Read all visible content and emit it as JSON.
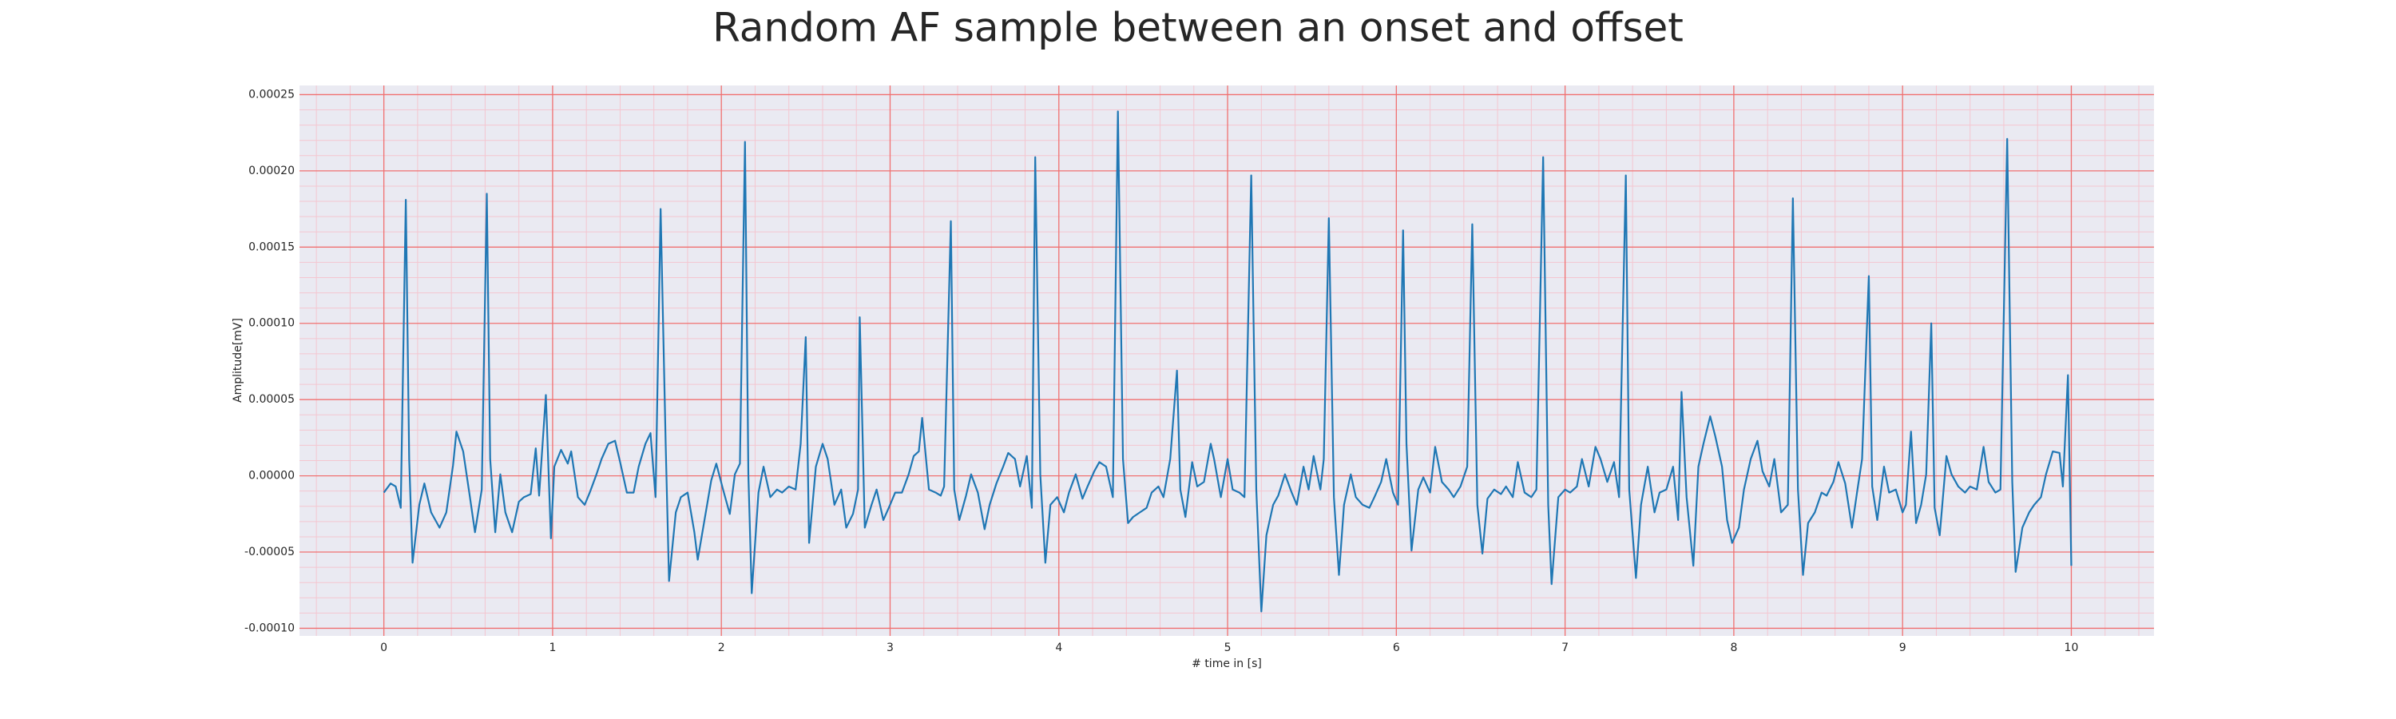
{
  "chart_data": {
    "type": "line",
    "title": "Random AF sample between an onset and offset",
    "xlabel": "# time in [s]",
    "ylabel": "Amplitude[mV]",
    "facecolor": "#eaeaf2",
    "grid": true,
    "grid_color": "#f07070",
    "minor_grid": true,
    "minor_grid_color": "#f4c6d0",
    "minor_divisions": 5,
    "color": "#1f77b4",
    "xlim": [
      -0.5,
      10.49
    ],
    "ylim": [
      -0.000105,
      0.000256
    ],
    "xticks": [
      0,
      1,
      2,
      3,
      4,
      5,
      6,
      7,
      8,
      9,
      10
    ],
    "yticks": [
      {
        "value": -0.0001,
        "label": "-0.00010"
      },
      {
        "value": -5e-05,
        "label": "-0.00005"
      },
      {
        "value": 0,
        "label": "0.00000"
      },
      {
        "value": 5e-05,
        "label": "0.00005"
      },
      {
        "value": 0.0001,
        "label": "0.00010"
      },
      {
        "value": 0.00015,
        "label": "0.00015"
      },
      {
        "value": 0.0002,
        "label": "0.00020"
      },
      {
        "value": 0.00025,
        "label": "0.00025"
      }
    ],
    "x": [
      0,
      0.04,
      0.07,
      0.1,
      0.13,
      0.15,
      0.17,
      0.21,
      0.24,
      0.28,
      0.33,
      0.37,
      0.41,
      0.43,
      0.47,
      0.51,
      0.54,
      0.58,
      0.61,
      0.63,
      0.66,
      0.69,
      0.72,
      0.76,
      0.8,
      0.83,
      0.87,
      0.9,
      0.92,
      0.96,
      0.99,
      1.01,
      1.05,
      1.09,
      1.11,
      1.15,
      1.19,
      1.22,
      1.26,
      1.29,
      1.33,
      1.37,
      1.4,
      1.44,
      1.48,
      1.51,
      1.55,
      1.58,
      1.61,
      1.64,
      1.67,
      1.69,
      1.73,
      1.76,
      1.8,
      1.84,
      1.86,
      1.9,
      1.94,
      1.97,
      2.01,
      2.05,
      2.08,
      2.11,
      2.14,
      2.16,
      2.18,
      2.22,
      2.25,
      2.29,
      2.33,
      2.36,
      2.4,
      2.44,
      2.47,
      2.5,
      2.52,
      2.56,
      2.6,
      2.63,
      2.67,
      2.71,
      2.74,
      2.78,
      2.81,
      2.82,
      2.85,
      2.89,
      2.92,
      2.96,
      3.0,
      3.03,
      3.07,
      3.11,
      3.14,
      3.17,
      3.19,
      3.23,
      3.27,
      3.3,
      3.32,
      3.36,
      3.38,
      3.41,
      3.45,
      3.48,
      3.52,
      3.56,
      3.59,
      3.63,
      3.67,
      3.7,
      3.74,
      3.77,
      3.81,
      3.84,
      3.86,
      3.89,
      3.92,
      3.95,
      3.99,
      4.03,
      4.06,
      4.1,
      4.14,
      4.17,
      4.21,
      4.24,
      4.28,
      4.32,
      4.35,
      4.38,
      4.41,
      4.44,
      4.48,
      4.52,
      4.55,
      4.59,
      4.62,
      4.66,
      4.7,
      4.72,
      4.75,
      4.79,
      4.82,
      4.86,
      4.9,
      4.92,
      4.96,
      5.0,
      5.03,
      5.07,
      5.1,
      5.14,
      5.17,
      5.2,
      5.23,
      5.27,
      5.3,
      5.34,
      5.38,
      5.41,
      5.45,
      5.48,
      5.51,
      5.55,
      5.57,
      5.6,
      5.63,
      5.66,
      5.69,
      5.73,
      5.76,
      5.8,
      5.84,
      5.87,
      5.91,
      5.94,
      5.98,
      6.01,
      6.04,
      6.06,
      6.09,
      6.13,
      6.16,
      6.2,
      6.23,
      6.27,
      6.31,
      6.34,
      6.38,
      6.42,
      6.45,
      6.48,
      6.51,
      6.54,
      6.58,
      6.62,
      6.65,
      6.69,
      6.72,
      6.76,
      6.8,
      6.83,
      6.87,
      6.9,
      6.92,
      6.96,
      7.0,
      7.03,
      7.07,
      7.1,
      7.14,
      7.18,
      7.21,
      7.25,
      7.29,
      7.32,
      7.36,
      7.38,
      7.42,
      7.45,
      7.49,
      7.53,
      7.56,
      7.6,
      7.64,
      7.67,
      7.69,
      7.72,
      7.76,
      7.79,
      7.82,
      7.86,
      7.89,
      7.93,
      7.96,
      7.99,
      8.03,
      8.06,
      8.1,
      8.14,
      8.17,
      8.21,
      8.24,
      8.28,
      8.32,
      8.35,
      8.38,
      8.41,
      8.44,
      8.48,
      8.52,
      8.55,
      8.59,
      8.62,
      8.66,
      8.7,
      8.73,
      8.76,
      8.8,
      8.82,
      8.85,
      8.89,
      8.92,
      8.96,
      9.0,
      9.02,
      9.05,
      9.08,
      9.11,
      9.14,
      9.17,
      9.19,
      9.22,
      9.26,
      9.29,
      9.33,
      9.37,
      9.4,
      9.44,
      9.48,
      9.51,
      9.55,
      9.58,
      9.62,
      9.65,
      9.67,
      9.71,
      9.75,
      9.78,
      9.82,
      9.85,
      9.89,
      9.93,
      9.95,
      9.98,
      10.0
    ],
    "values": [
      -1.1e-05,
      -5e-06,
      -7e-06,
      -2.1e-05,
      0.000181,
      1.1e-05,
      -5.7e-05,
      -1.9e-05,
      -5e-06,
      -2.4e-05,
      -3.4e-05,
      -2.4e-05,
      7e-06,
      2.9e-05,
      1.6e-05,
      -1.4e-05,
      -3.7e-05,
      -9e-06,
      0.000185,
      1.1e-05,
      -3.7e-05,
      1e-06,
      -2.4e-05,
      -3.7e-05,
      -1.7e-05,
      -1.4e-05,
      -1.2e-05,
      1.8e-05,
      -1.3e-05,
      5.3e-05,
      -4.1e-05,
      6e-06,
      1.7e-05,
      8e-06,
      1.6e-05,
      -1.4e-05,
      -1.9e-05,
      -1.1e-05,
      1e-06,
      1.1e-05,
      2.1e-05,
      2.3e-05,
      9e-06,
      -1.1e-05,
      -1.1e-05,
      6e-06,
      2.1e-05,
      2.8e-05,
      -1.4e-05,
      0.000175,
      2.1e-05,
      -6.9e-05,
      -2.4e-05,
      -1.4e-05,
      -1.1e-05,
      -3.7e-05,
      -5.5e-05,
      -2.9e-05,
      -3e-06,
      8e-06,
      -9e-06,
      -2.5e-05,
      1e-06,
      8e-06,
      0.000219,
      1e-06,
      -7.7e-05,
      -1.1e-05,
      6e-06,
      -1.4e-05,
      -9e-06,
      -1.1e-05,
      -7e-06,
      -9e-06,
      2.1e-05,
      9.1e-05,
      -4.4e-05,
      6e-06,
      2.1e-05,
      1.1e-05,
      -1.9e-05,
      -9e-06,
      -3.4e-05,
      -2.5e-05,
      -9e-06,
      0.000104,
      -3.4e-05,
      -1.9e-05,
      -9e-06,
      -2.9e-05,
      -1.9e-05,
      -1.1e-05,
      -1.1e-05,
      1e-06,
      1.3e-05,
      1.6e-05,
      3.8e-05,
      -9e-06,
      -1.1e-05,
      -1.3e-05,
      -7e-06,
      0.000167,
      -9e-06,
      -2.9e-05,
      -1.3e-05,
      1e-06,
      -1.1e-05,
      -3.5e-05,
      -1.9e-05,
      -5e-06,
      6e-06,
      1.5e-05,
      1.1e-05,
      -7e-06,
      1.3e-05,
      -2.1e-05,
      0.000209,
      1e-06,
      -5.7e-05,
      -1.9e-05,
      -1.4e-05,
      -2.4e-05,
      -1.1e-05,
      1e-06,
      -1.5e-05,
      -7e-06,
      3e-06,
      9e-06,
      6e-06,
      -1.4e-05,
      0.000239,
      1.1e-05,
      -3.1e-05,
      -2.7e-05,
      -2.4e-05,
      -2.1e-05,
      -1.1e-05,
      -7e-06,
      -1.4e-05,
      1.1e-05,
      6.9e-05,
      -9e-06,
      -2.7e-05,
      9e-06,
      -7e-06,
      -4e-06,
      2.1e-05,
      1.1e-05,
      -1.4e-05,
      1.1e-05,
      -9e-06,
      -1.1e-05,
      -1.4e-05,
      0.000197,
      -9e-06,
      -8.9e-05,
      -3.9e-05,
      -1.9e-05,
      -1.3e-05,
      1e-06,
      -1.1e-05,
      -1.9e-05,
      6e-06,
      -9e-06,
      1.3e-05,
      -9e-06,
      1.1e-05,
      0.000169,
      -1.4e-05,
      -6.5e-05,
      -1.9e-05,
      1e-06,
      -1.4e-05,
      -1.9e-05,
      -2.1e-05,
      -1.4e-05,
      -4e-06,
      1.1e-05,
      -1.1e-05,
      -1.9e-05,
      0.000161,
      2.1e-05,
      -4.9e-05,
      -9e-06,
      -1e-06,
      -1.1e-05,
      1.9e-05,
      -4e-06,
      -9e-06,
      -1.4e-05,
      -7e-06,
      6e-06,
      0.000165,
      -1.9e-05,
      -5.1e-05,
      -1.5e-05,
      -9e-06,
      -1.2e-05,
      -7e-06,
      -1.4e-05,
      9e-06,
      -1.1e-05,
      -1.4e-05,
      -9e-06,
      0.000209,
      -1.9e-05,
      -7.1e-05,
      -1.4e-05,
      -9e-06,
      -1.1e-05,
      -7e-06,
      1.1e-05,
      -7e-06,
      1.9e-05,
      1.1e-05,
      -4e-06,
      9e-06,
      -1.4e-05,
      0.000197,
      -9e-06,
      -6.7e-05,
      -1.9e-05,
      6e-06,
      -2.4e-05,
      -1.1e-05,
      -9e-06,
      6e-06,
      -2.9e-05,
      5.5e-05,
      -1.4e-05,
      -5.9e-05,
      6e-06,
      2.1e-05,
      3.9e-05,
      2.6e-05,
      6e-06,
      -2.9e-05,
      -4.4e-05,
      -3.4e-05,
      -9e-06,
      1.1e-05,
      2.3e-05,
      3e-06,
      -7e-06,
      1.1e-05,
      -2.4e-05,
      -1.9e-05,
      0.000182,
      -9e-06,
      -6.5e-05,
      -3.1e-05,
      -2.4e-05,
      -1.1e-05,
      -1.3e-05,
      -4e-06,
      9e-06,
      -5e-06,
      -3.4e-05,
      -1.1e-05,
      1.1e-05,
      0.000131,
      -7e-06,
      -2.9e-05,
      6e-06,
      -1.1e-05,
      -9e-06,
      -2.4e-05,
      -1.9e-05,
      2.9e-05,
      -3.1e-05,
      -1.9e-05,
      1e-06,
      0.0001,
      -2.1e-05,
      -3.9e-05,
      1.3e-05,
      1e-06,
      -7e-06,
      -1.1e-05,
      -7e-06,
      -9e-06,
      1.9e-05,
      -4e-06,
      -1.1e-05,
      -9e-06,
      0.000221,
      -4e-06,
      -6.3e-05,
      -3.4e-05,
      -2.4e-05,
      -1.9e-05,
      -1.4e-05,
      1e-06,
      1.6e-05,
      1.5e-05,
      -7e-06,
      6.6e-05,
      -5.9e-05
    ]
  }
}
